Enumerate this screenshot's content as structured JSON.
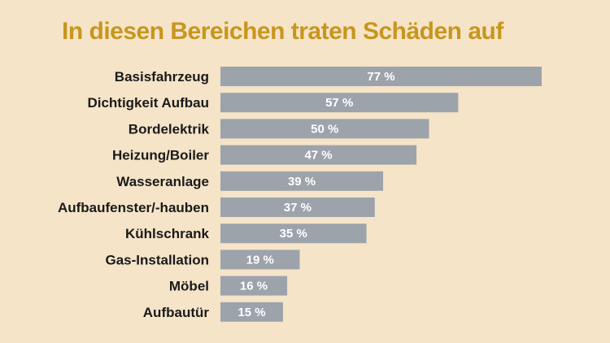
{
  "chart_data": {
    "type": "bar",
    "orientation": "horizontal",
    "title": "In diesen Bereichen traten Schäden auf",
    "categories": [
      "Basisfahrzeug",
      "Dichtigkeit Aufbau",
      "Bordelektrik",
      "Heizung/Boiler",
      "Wasseranlage",
      "Aufbaufenster/-hauben",
      "Kühlschrank",
      "Gas-Installation",
      "Möbel",
      "Aufbautür"
    ],
    "values": [
      77,
      57,
      50,
      47,
      39,
      37,
      35,
      19,
      16,
      15
    ],
    "value_labels": [
      "77 %",
      "57 %",
      "50 %",
      "47 %",
      "39 %",
      "37 %",
      "35 %",
      "19 %",
      "16 %",
      "15 %"
    ],
    "unit": "%",
    "xlim": [
      0,
      77
    ],
    "grid": false,
    "colors": {
      "background": "#f5e4c8",
      "bar": "#9da3ab",
      "title": "#c8961e",
      "category_text": "#1a1a1a",
      "value_text": "#ffffff"
    }
  }
}
